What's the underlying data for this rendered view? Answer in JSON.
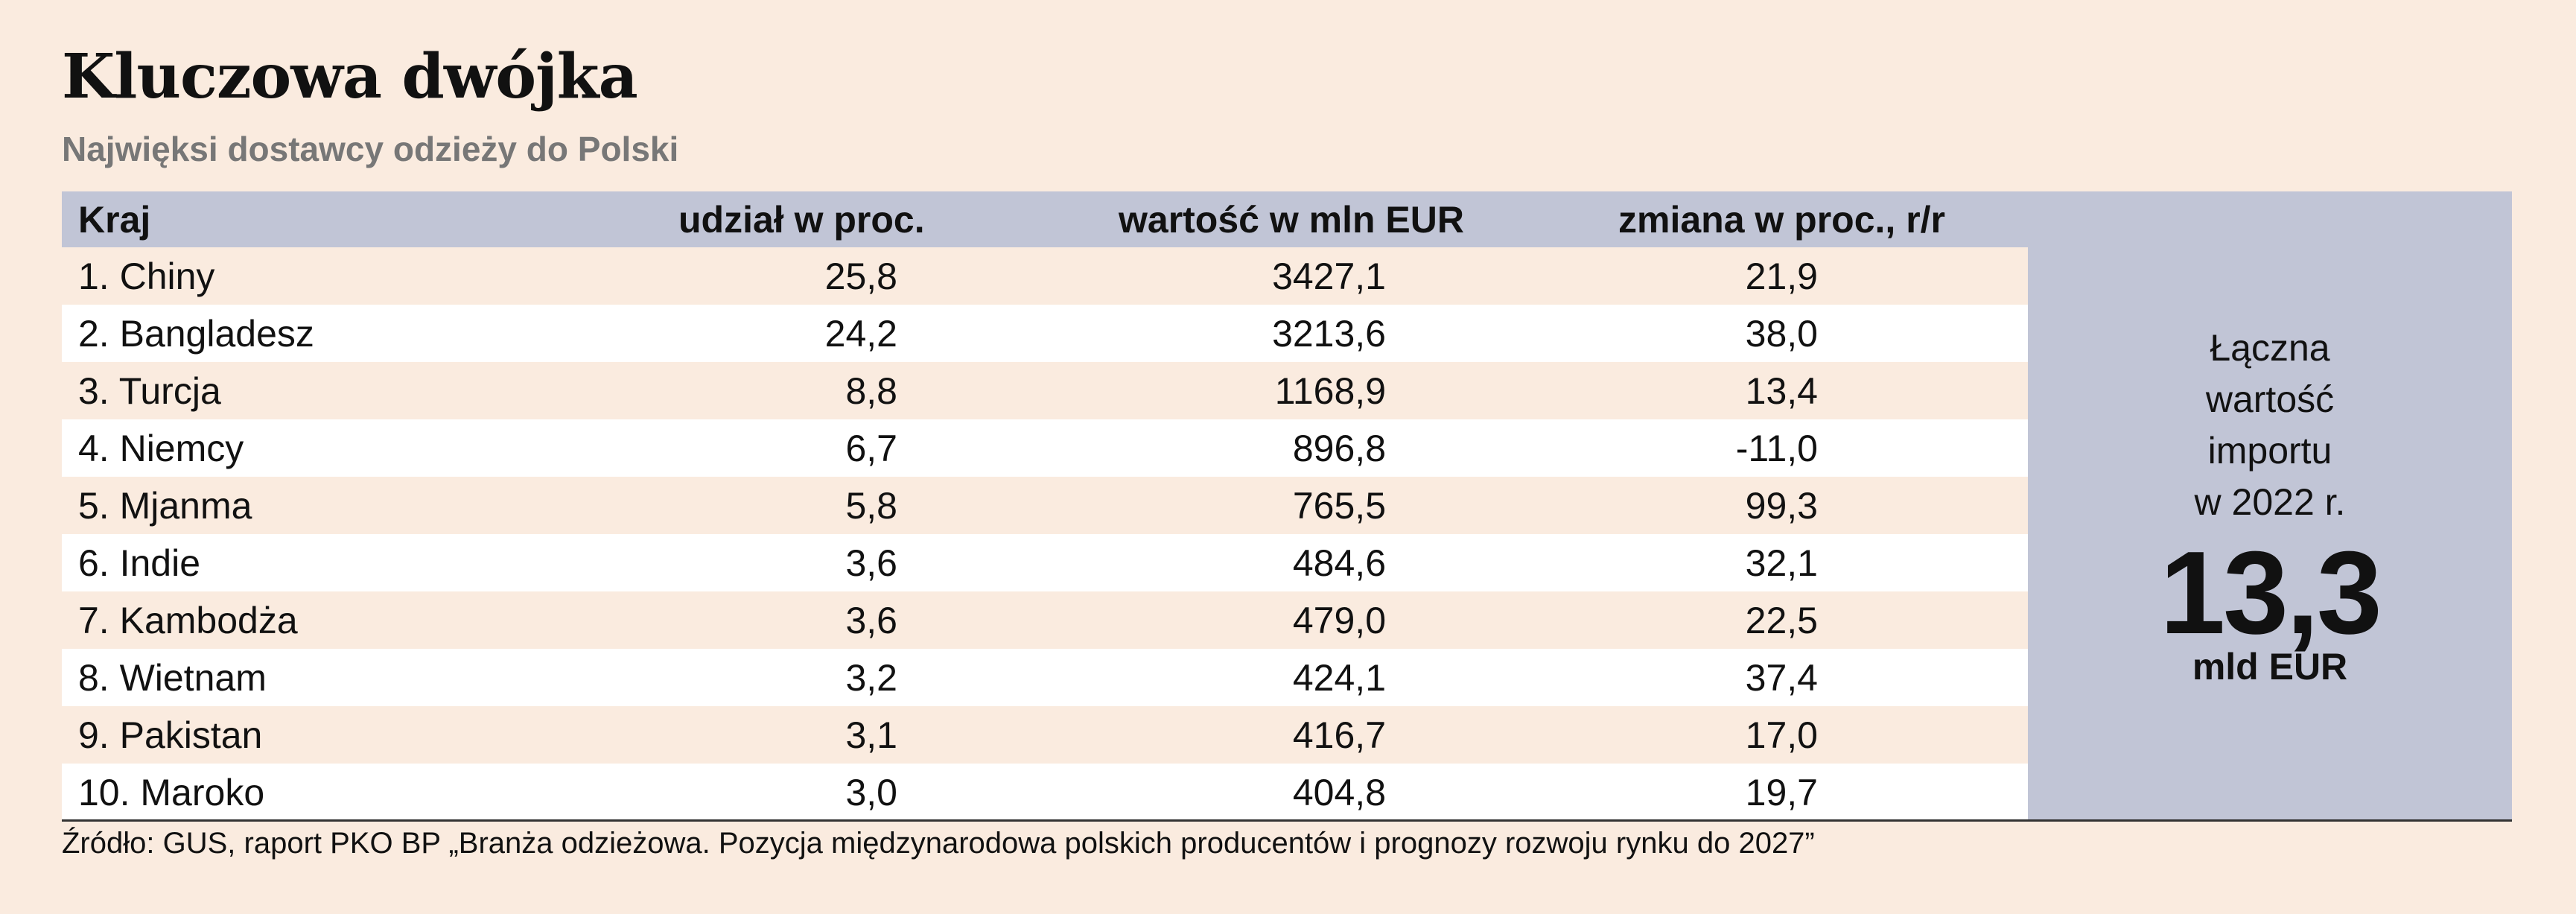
{
  "title": "Kluczowa dwójka",
  "subtitle": "Najwięksi dostawcy odzieży do Polski",
  "chart_data": {
    "type": "table",
    "columns": [
      "Kraj",
      "udział w proc.",
      "wartość w mln EUR",
      "zmiana w proc., r/r"
    ],
    "rows": [
      [
        "1. Chiny",
        "25,8",
        "3427,1",
        "21,9"
      ],
      [
        "2. Bangladesz",
        "24,2",
        "3213,6",
        "38,0"
      ],
      [
        "3. Turcja",
        "8,8",
        "1168,9",
        "13,4"
      ],
      [
        "4. Niemcy",
        "6,7",
        "896,8",
        "-11,0"
      ],
      [
        "5. Mjanma",
        "5,8",
        "765,5",
        "99,3"
      ],
      [
        "6. Indie",
        "3,6",
        "484,6",
        "32,1"
      ],
      [
        "7. Kambodża",
        "3,6",
        "479,0",
        "22,5"
      ],
      [
        "8. Wietnam",
        "3,2",
        "424,1",
        "37,4"
      ],
      [
        "9. Pakistan",
        "3,1",
        "416,7",
        "17,0"
      ],
      [
        "10. Maroko",
        "3,0",
        "404,8",
        "19,7"
      ]
    ]
  },
  "summary": {
    "lines": [
      "Łączna",
      "wartość",
      "importu",
      "w 2022 r."
    ],
    "value": "13,3",
    "unit": "mld EUR"
  },
  "source": "Źródło: GUS, raport PKO BP „Branża odzieżowa. Pozycja międzynarodowa polskich producentów i prognozy rozwoju rynku do 2027”",
  "colors": {
    "background": "#faebdf",
    "header": "#c1c5d6",
    "row_alt": "#ffffff",
    "subtitle": "#777777"
  }
}
